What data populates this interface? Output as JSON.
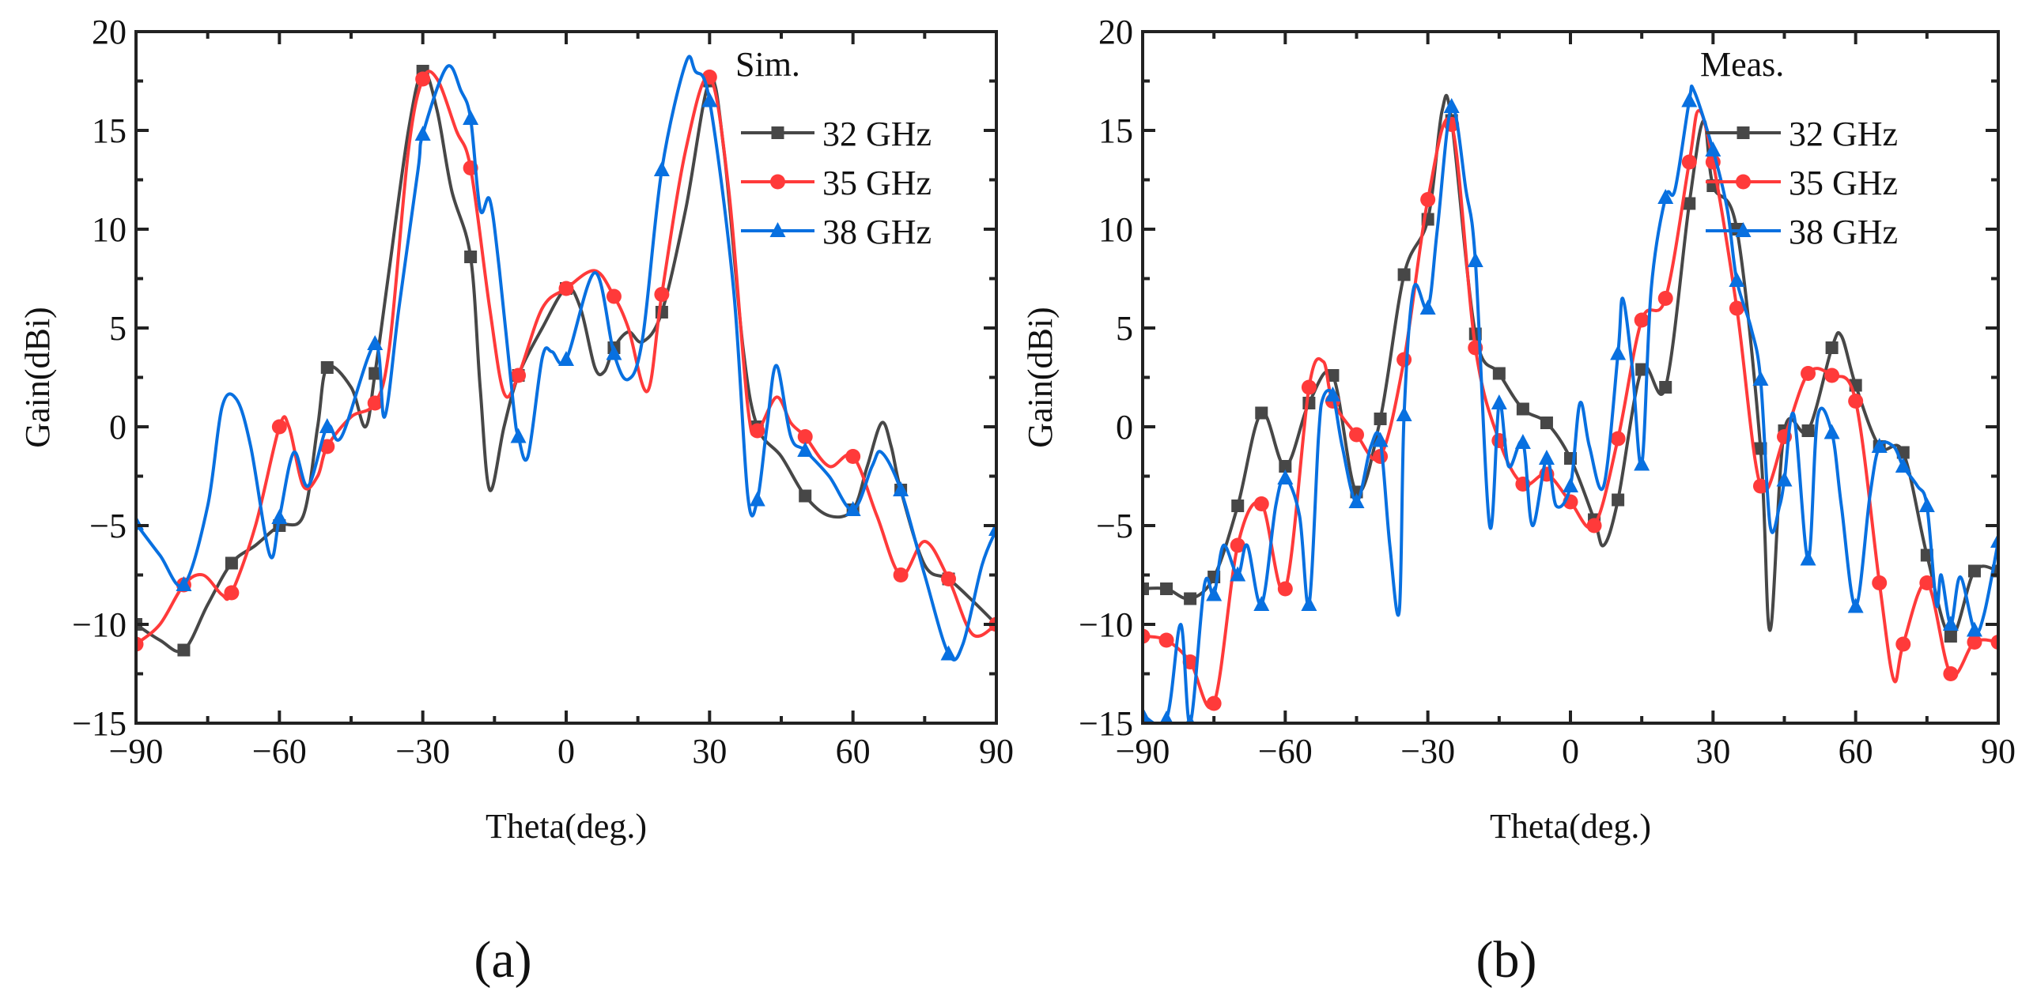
{
  "colors": {
    "32 GHz": "#474747",
    "35 GHz": "#ff3a3a",
    "38 GHz": "#0870e0"
  },
  "chart_data": [
    {
      "type": "line",
      "panel_label": "(a)",
      "panel_letter": "a",
      "legend_title": "Sim.",
      "legend_placement": "top-right",
      "xlabel": "Theta(deg.)",
      "ylabel": "Gain(dBi)",
      "xlim": [
        -90,
        90
      ],
      "ylim": [
        -15,
        20
      ],
      "xticks": [
        -90,
        -60,
        -30,
        0,
        30,
        60,
        90
      ],
      "yticks": [
        -15,
        -10,
        -5,
        0,
        5,
        10,
        15,
        20
      ],
      "marker_step": 10,
      "series": [
        {
          "name": "32 GHz",
          "marker": "square",
          "x": [
            -90,
            -85,
            -80,
            -75,
            -70,
            -65,
            -60,
            -55,
            -52,
            -50,
            -45,
            -42,
            -40,
            -37,
            -33,
            -30,
            -27,
            -24,
            -20,
            -18,
            -16,
            -13,
            -10,
            -5,
            0,
            3,
            6,
            8,
            10,
            13,
            16,
            20,
            25,
            30,
            33,
            37,
            40,
            45,
            50,
            55,
            60,
            63,
            66,
            68,
            70,
            75,
            80,
            85,
            90
          ],
          "y": [
            -10,
            -10.8,
            -11.3,
            -9,
            -6.9,
            -6,
            -5,
            -4.5,
            0,
            3,
            2,
            0,
            2.7,
            8,
            15,
            18,
            16,
            12,
            8.6,
            2,
            -3.2,
            0,
            2.6,
            5,
            7,
            6,
            3,
            2.8,
            4,
            4.8,
            4.3,
            5.8,
            11,
            17.5,
            14,
            4,
            0,
            -1.5,
            -3.5,
            -4.5,
            -4.2,
            -2,
            0.2,
            -1,
            -3.2,
            -7,
            -7.7,
            -8.8,
            -10
          ]
        },
        {
          "name": "35 GHz",
          "marker": "circle",
          "x": [
            -90,
            -85,
            -80,
            -76,
            -72,
            -70,
            -65,
            -60,
            -58,
            -55,
            -52,
            -50,
            -45,
            -40,
            -37,
            -33,
            -30,
            -27,
            -23,
            -20,
            -16,
            -13,
            -10,
            -5,
            0,
            6,
            10,
            13,
            17,
            20,
            25,
            30,
            34,
            38,
            40,
            44,
            47,
            50,
            55,
            60,
            65,
            70,
            75,
            80,
            85,
            90
          ],
          "y": [
            -11,
            -10,
            -8,
            -7.5,
            -8.5,
            -8.4,
            -5,
            0,
            0,
            -3,
            -2.5,
            -1,
            0.5,
            1.2,
            4,
            14,
            17.6,
            17.6,
            15,
            13.1,
            6,
            1.7,
            2.6,
            6,
            7,
            7.9,
            6.6,
            5,
            1.8,
            6.7,
            14,
            17.7,
            12,
            1,
            -0.2,
            1.5,
            0.2,
            -0.5,
            -2,
            -1.5,
            -4.5,
            -7.5,
            -5.8,
            -7.7,
            -10.5,
            -10
          ]
        },
        {
          "name": "38 GHz",
          "marker": "triangle",
          "x": [
            -90,
            -85,
            -80,
            -75,
            -72,
            -69,
            -66,
            -62,
            -60,
            -57,
            -54,
            -50,
            -47,
            -40,
            -38,
            -35,
            -31,
            -30,
            -25,
            -22,
            -20,
            -18,
            -16,
            -14,
            -11,
            -10,
            -8,
            -5,
            -3,
            0,
            6,
            10,
            13,
            16,
            20,
            25,
            27,
            30,
            35,
            38,
            40,
            42,
            44,
            47,
            50,
            55,
            60,
            64,
            66,
            70,
            75,
            80,
            83,
            87,
            90
          ],
          "y": [
            -4.9,
            -6.5,
            -8,
            -4,
            1,
            1.4,
            -1,
            -6.5,
            -4.6,
            -1.3,
            -3,
            0,
            -0.5,
            4.2,
            0.5,
            6,
            13,
            14.8,
            18.2,
            17,
            15.6,
            11,
            11.5,
            8,
            1,
            -0.5,
            -1.5,
            3.5,
            3.8,
            3.4,
            7.8,
            3.7,
            2.4,
            4.5,
            13,
            18.4,
            18,
            16.5,
            7,
            -3.5,
            -3.7,
            0,
            3.1,
            -0.5,
            -1.2,
            -2.5,
            -4.2,
            -2,
            -1.3,
            -3.2,
            -7.5,
            -11.5,
            -11,
            -7,
            -5.2
          ]
        }
      ]
    },
    {
      "type": "line",
      "panel_label": "(b)",
      "panel_letter": "b",
      "legend_title": "Meas.",
      "legend_placement": "top-right",
      "xlabel": "Theta(deg.)",
      "ylabel": "Gain(dBi)",
      "xlim": [
        -90,
        90
      ],
      "ylim": [
        -15,
        20
      ],
      "xticks": [
        -90,
        -60,
        -30,
        0,
        30,
        60,
        90
      ],
      "yticks": [
        -15,
        -10,
        -5,
        0,
        5,
        10,
        15,
        20
      ],
      "marker_step": 5,
      "series": [
        {
          "name": "32 GHz",
          "marker": "square",
          "x": [
            -90,
            -85,
            -80,
            -75,
            -70,
            -65,
            -60,
            -55,
            -50,
            -45,
            -40,
            -35,
            -30,
            -27,
            -25,
            -20,
            -15,
            -10,
            -5,
            0,
            5,
            7,
            10,
            15,
            20,
            25,
            28,
            30,
            35,
            40,
            42,
            45,
            50,
            55,
            57,
            60,
            65,
            70,
            75,
            80,
            85,
            90
          ],
          "y": [
            -8.2,
            -8.2,
            -8.7,
            -7.6,
            -4,
            0.7,
            -2,
            1.2,
            2.6,
            -3.3,
            0.4,
            7.7,
            10.5,
            16,
            15.5,
            4.7,
            2.7,
            0.9,
            0.2,
            -1.6,
            -4.7,
            -6,
            -3.7,
            2.9,
            2,
            11.3,
            15.5,
            12.2,
            10,
            -1.1,
            -10.3,
            -0.2,
            -0.2,
            4,
            4.6,
            2.1,
            -1,
            -1.3,
            -6.5,
            -10.6,
            -7.3,
            -7.3
          ]
        },
        {
          "name": "35 GHz",
          "marker": "circle",
          "x": [
            -90,
            -85,
            -80,
            -75,
            -70,
            -65,
            -60,
            -55,
            -52,
            -50,
            -45,
            -40,
            -35,
            -30,
            -25,
            -20,
            -15,
            -10,
            -5,
            0,
            5,
            10,
            15,
            20,
            25,
            27,
            30,
            35,
            40,
            45,
            50,
            55,
            60,
            65,
            68,
            70,
            75,
            80,
            85,
            90
          ],
          "y": [
            -10.6,
            -10.8,
            -11.9,
            -14,
            -6,
            -3.9,
            -8.2,
            2,
            3.3,
            1.3,
            -0.4,
            -1.5,
            3.4,
            11.5,
            15.3,
            4,
            -0.7,
            -2.9,
            -2.4,
            -3.8,
            -5,
            -0.6,
            5.4,
            6.5,
            13.4,
            16,
            13.4,
            6,
            -3,
            -0.5,
            2.7,
            2.6,
            1.3,
            -7.9,
            -12.8,
            -11,
            -7.9,
            -12.5,
            -10.9,
            -10.9
          ]
        },
        {
          "name": "38 GHz",
          "marker": "triangle",
          "x": [
            -90,
            -85,
            -82,
            -80,
            -77,
            -75,
            -73,
            -70,
            -68,
            -65,
            -62,
            -60,
            -57,
            -55,
            -53,
            -52,
            -50,
            -48,
            -45,
            -42,
            -40,
            -38,
            -36,
            -35,
            -33,
            -30,
            -28,
            -25,
            -22,
            -20,
            -17,
            -15,
            -13,
            -10,
            -8,
            -5,
            -3,
            0,
            2,
            4,
            7,
            10,
            11,
            13,
            15,
            17,
            20,
            22,
            25,
            26,
            30,
            33,
            35,
            38,
            40,
            42,
            44,
            45,
            47,
            50,
            52,
            55,
            57,
            60,
            63,
            65,
            68,
            70,
            73,
            75,
            77,
            78,
            80,
            82,
            85,
            87,
            90
          ],
          "y": [
            -14.6,
            -14.8,
            -10,
            -15,
            -8,
            -8.5,
            -6,
            -7.5,
            -6,
            -9,
            -4,
            -2.6,
            -4.5,
            -9,
            -0.5,
            1.5,
            1.6,
            -1,
            -3.8,
            -1,
            -0.7,
            -6,
            -9.3,
            0.6,
            7,
            6,
            10,
            16.2,
            12,
            8.4,
            -5,
            1.2,
            -2,
            -0.8,
            -5,
            -1.6,
            -4,
            -3,
            1.2,
            -1,
            -3,
            3.7,
            6.5,
            3,
            -1.9,
            7,
            11.6,
            12,
            16.5,
            17,
            14,
            11,
            7.4,
            5,
            2.4,
            -5,
            -4,
            -2.7,
            0.6,
            -6.7,
            0.5,
            -0.3,
            -4,
            -9.1,
            -3.5,
            -1,
            -1,
            -2,
            -3,
            -4,
            -9,
            -7.5,
            -10,
            -7.6,
            -10.3,
            -9.5,
            -5.8
          ]
        }
      ]
    }
  ]
}
